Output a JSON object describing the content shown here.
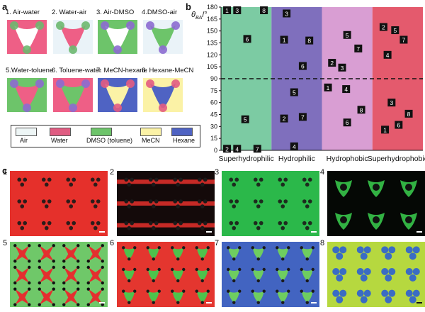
{
  "panel_a": {
    "letter": "a",
    "cells": [
      {
        "label": "1. Air-water",
        "bg": "#ee5f86",
        "fill": "#ffffff",
        "dot": "#6db86f"
      },
      {
        "label": "2. Water-air",
        "bg": "#eaf3f8",
        "fill": "#ee5f86",
        "dot": "#6db86f"
      },
      {
        "label": "3. Air-DMSO",
        "bg": "#6dc46a",
        "fill": "#ffffff",
        "dot": "#8c6bd0"
      },
      {
        "label": "4.DMSO-air",
        "bg": "#eaf3f8",
        "fill": "#6dc46a",
        "dot": "#8c6bd0"
      },
      {
        "label": "5.Water-toluene",
        "bg": "#6dc46a",
        "fill": "#ee5f86",
        "dot": "#8c6bd0"
      },
      {
        "label": "6. Toluene-water",
        "bg": "#ee5f86",
        "fill": "#6dc46a",
        "dot": "#8c6bd0"
      },
      {
        "label": "7. MeCN-hexane",
        "bg": "#4f63c3",
        "fill": "#fbf2a6",
        "dot": "#e25b82"
      },
      {
        "label": "8. Hexane-MeCN",
        "bg": "#fbf2a6",
        "fill": "#4f63c3",
        "dot": "#e25b82"
      }
    ],
    "legend": [
      {
        "label": "Air",
        "color": "#eef6f6"
      },
      {
        "label": "Water",
        "color": "#e05c82"
      },
      {
        "label": "DMSO (toluene)",
        "color": "#6dc46a"
      },
      {
        "label": "MeCN",
        "color": "#fbf2a6"
      },
      {
        "label": "Hexane",
        "color": "#4f63c3"
      }
    ]
  },
  "panel_b": {
    "letter": "b",
    "ylabel_symbol": "θ",
    "ylabel_sub": "BA",
    "ylabel_unit": "/°",
    "region_colors": [
      "#7ccba3",
      "#7f6fbd",
      "#d99ed3",
      "#e45a6d"
    ],
    "marker_color": "#111111",
    "marker_text_color": "#ffffff"
  },
  "chart_data": {
    "type": "scatter",
    "title": "",
    "xlabel": "",
    "ylabel": "θBA/°",
    "ylim": [
      0,
      180
    ],
    "yticks": [
      0,
      15,
      30,
      45,
      60,
      75,
      90,
      105,
      120,
      135,
      150,
      165,
      180
    ],
    "categories": [
      "Superhydrophilic",
      "Hydrophilic",
      "Hydrophobic",
      "Superhydrophobic"
    ],
    "reference_line": 90,
    "series": [
      {
        "region": "Superhydrophilic",
        "points": [
          {
            "label": "1",
            "xpos": 0.12,
            "y": 176
          },
          {
            "label": "3",
            "xpos": 0.32,
            "y": 176
          },
          {
            "label": "8",
            "xpos": 0.85,
            "y": 176
          },
          {
            "label": "6",
            "xpos": 0.52,
            "y": 140
          },
          {
            "label": "5",
            "xpos": 0.48,
            "y": 39
          },
          {
            "label": "2",
            "xpos": 0.12,
            "y": 2
          },
          {
            "label": "4",
            "xpos": 0.32,
            "y": 2
          },
          {
            "label": "7",
            "xpos": 0.72,
            "y": 2
          }
        ]
      },
      {
        "region": "Hydrophilic",
        "points": [
          {
            "label": "3",
            "xpos": 0.3,
            "y": 172
          },
          {
            "label": "1",
            "xpos": 0.25,
            "y": 139
          },
          {
            "label": "8",
            "xpos": 0.75,
            "y": 138
          },
          {
            "label": "6",
            "xpos": 0.62,
            "y": 106
          },
          {
            "label": "5",
            "xpos": 0.45,
            "y": 73
          },
          {
            "label": "2",
            "xpos": 0.25,
            "y": 40
          },
          {
            "label": "7",
            "xpos": 0.62,
            "y": 42
          },
          {
            "label": "4",
            "xpos": 0.45,
            "y": 5
          }
        ]
      },
      {
        "region": "Hydrophobic",
        "points": [
          {
            "label": "5",
            "xpos": 0.5,
            "y": 145
          },
          {
            "label": "7",
            "xpos": 0.72,
            "y": 128
          },
          {
            "label": "2",
            "xpos": 0.2,
            "y": 110
          },
          {
            "label": "3",
            "xpos": 0.4,
            "y": 104
          },
          {
            "label": "1",
            "xpos": 0.12,
            "y": 79
          },
          {
            "label": "4",
            "xpos": 0.48,
            "y": 77
          },
          {
            "label": "8",
            "xpos": 0.78,
            "y": 51
          },
          {
            "label": "6",
            "xpos": 0.5,
            "y": 35
          }
        ]
      },
      {
        "region": "Superhydrophobic",
        "points": [
          {
            "label": "2",
            "xpos": 0.22,
            "y": 155
          },
          {
            "label": "5",
            "xpos": 0.45,
            "y": 151
          },
          {
            "label": "7",
            "xpos": 0.62,
            "y": 139
          },
          {
            "label": "4",
            "xpos": 0.3,
            "y": 120
          },
          {
            "label": "3",
            "xpos": 0.38,
            "y": 60
          },
          {
            "label": "8",
            "xpos": 0.72,
            "y": 46
          },
          {
            "label": "6",
            "xpos": 0.52,
            "y": 32
          },
          {
            "label": "1",
            "xpos": 0.25,
            "y": 26
          }
        ]
      }
    ]
  },
  "panel_c": {
    "letter": "c",
    "tiles": [
      {
        "num": "1",
        "bg": "#e5302b",
        "dot": "#2b1c1a",
        "shape": "tri",
        "num_color": "#111111"
      },
      {
        "num": "2",
        "bg": "#140a0a",
        "dot": "#1a1a1a",
        "shape": "web",
        "num_color": "#ffffff"
      },
      {
        "num": "3",
        "bg": "#2bb84a",
        "dot": "#1d2a1e",
        "shape": "tri",
        "num_color": "#111111"
      },
      {
        "num": "4",
        "bg": "#050805",
        "dot": "#32b243",
        "shape": "ring",
        "num_color": "#ffffff"
      },
      {
        "num": "5",
        "bg": "#6fc869",
        "dot": "#e42f2f",
        "shape": "star",
        "num_color": "#111111"
      },
      {
        "num": "6",
        "bg": "#e4362f",
        "dot": "#4ec24c",
        "shape": "blob",
        "num_color": "#111111"
      },
      {
        "num": "7",
        "bg": "#4264c1",
        "dot": "#6ecd60",
        "shape": "blob",
        "num_color": "#111111"
      },
      {
        "num": "8",
        "bg": "#b6d83f",
        "dot": "#3a6cc4",
        "shape": "clover",
        "num_color": "#111111"
      }
    ]
  }
}
